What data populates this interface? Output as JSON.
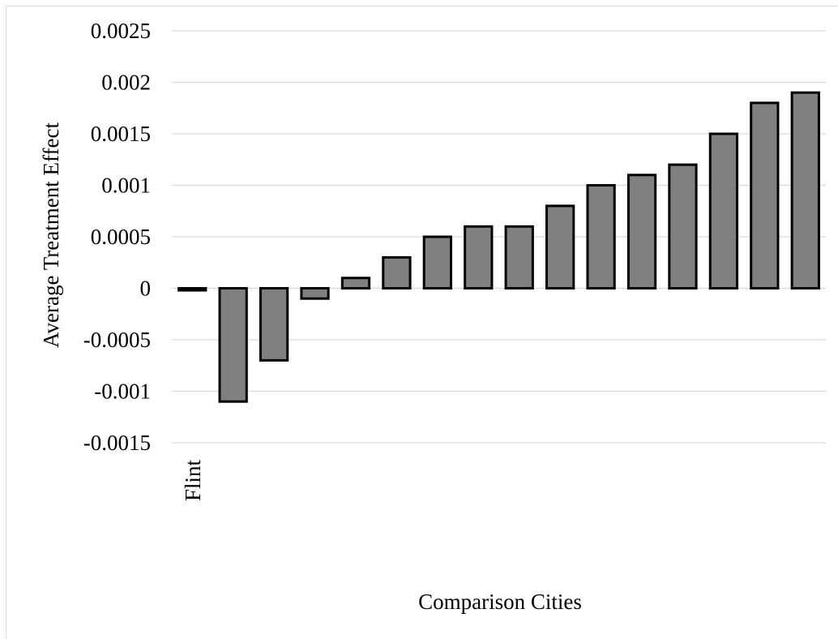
{
  "chart_data": {
    "type": "bar",
    "title": "",
    "xlabel": "Comparison Cities",
    "ylabel": "Average Treatment Effect",
    "categories": [
      "Flint",
      "",
      "",
      "",
      "",
      "",
      "",
      "",
      "",
      "",
      "",
      "",
      "",
      "",
      "",
      ""
    ],
    "values": [
      -2e-05,
      -0.0011,
      -0.0007,
      -0.0001,
      0.0001,
      0.0003,
      0.0005,
      0.0006,
      0.0006,
      0.0008,
      0.001,
      0.0011,
      0.0012,
      0.0015,
      0.0018,
      0.0019
    ],
    "ylim": [
      -0.0015,
      0.0025
    ],
    "yticks": [
      {
        "value": -0.0015,
        "label": "-0.0015"
      },
      {
        "value": -0.001,
        "label": "-0.001"
      },
      {
        "value": -0.0005,
        "label": "-0.0005"
      },
      {
        "value": 0,
        "label": "0"
      },
      {
        "value": 0.0005,
        "label": "0.0005"
      },
      {
        "value": 0.001,
        "label": "0.001"
      },
      {
        "value": 0.0015,
        "label": "0.0015"
      },
      {
        "value": 0.002,
        "label": "0.002"
      },
      {
        "value": 0.0025,
        "label": "0.0025"
      }
    ],
    "grid": true,
    "legend": "none",
    "colors": {
      "bar_fill": "#808080",
      "bar_stroke": "#000000",
      "grid": "#d9d9d9"
    }
  }
}
